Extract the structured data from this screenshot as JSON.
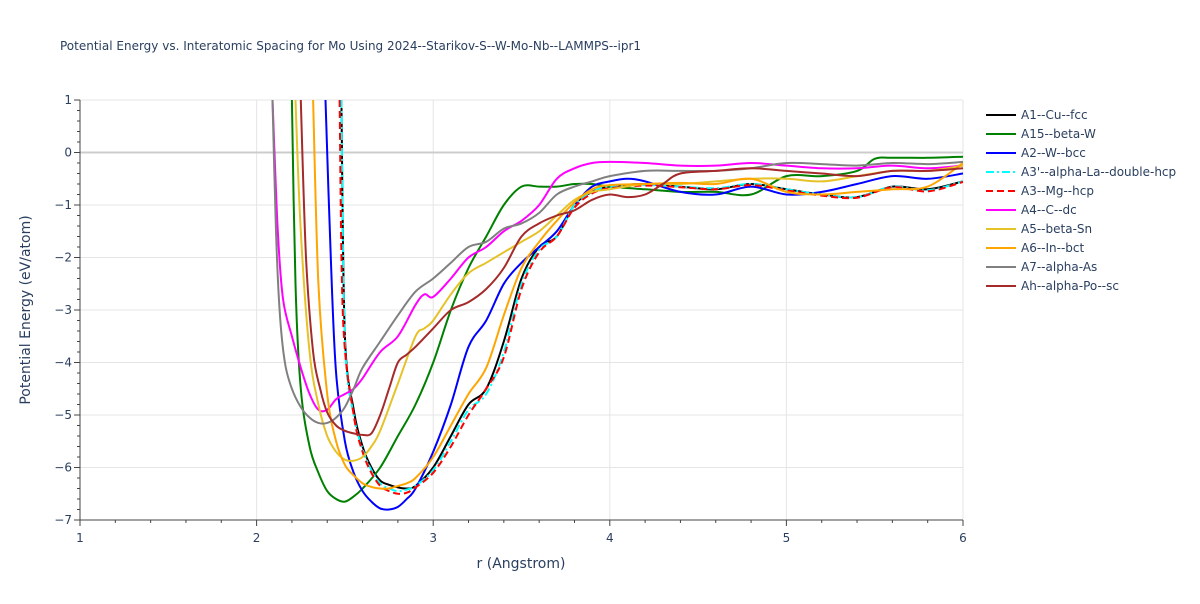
{
  "chart_data": {
    "type": "line",
    "title": "Potential Energy vs. Interatomic Spacing for Mo Using 2024--Starikov-S--W-Mo-Nb--LAMMPS--ipr1",
    "xlabel": "r (Angstrom)",
    "ylabel": "Potential Energy (eV/atom)",
    "xlim": [
      1,
      6
    ],
    "ylim": [
      -7,
      1
    ],
    "x_ticks": [
      "1",
      "2",
      "3",
      "4",
      "5",
      "6"
    ],
    "y_ticks": [
      "1",
      "0",
      "−1",
      "−2",
      "−3",
      "−4",
      "−5",
      "−6",
      "−7"
    ],
    "legend_position": "right",
    "series": [
      {
        "name": "A1--Cu--fcc",
        "color": "#000000",
        "dash": "solid",
        "x": [
          2.48,
          2.5,
          2.55,
          2.6,
          2.65,
          2.7,
          2.75,
          2.8,
          2.85,
          2.9,
          3.0,
          3.1,
          3.2,
          3.3,
          3.4,
          3.5,
          3.6,
          3.7,
          3.8,
          3.9,
          4.0,
          4.2,
          4.4,
          4.6,
          4.8,
          5.0,
          5.2,
          5.4,
          5.6,
          5.8,
          6.0
        ],
        "y": [
          1.0,
          -3.5,
          -4.9,
          -5.6,
          -6.0,
          -6.25,
          -6.33,
          -6.38,
          -6.4,
          -6.35,
          -6.0,
          -5.4,
          -4.8,
          -4.5,
          -3.6,
          -2.4,
          -1.8,
          -1.6,
          -1.0,
          -0.75,
          -0.65,
          -0.6,
          -0.65,
          -0.7,
          -0.6,
          -0.7,
          -0.8,
          -0.85,
          -0.65,
          -0.7,
          -0.55
        ]
      },
      {
        "name": "A15--beta-W",
        "color": "#008000",
        "dash": "solid",
        "x": [
          2.2,
          2.22,
          2.25,
          2.3,
          2.35,
          2.4,
          2.45,
          2.5,
          2.55,
          2.6,
          2.7,
          2.8,
          2.9,
          3.0,
          3.1,
          3.2,
          3.3,
          3.4,
          3.5,
          3.6,
          3.7,
          3.8,
          3.9,
          4.0,
          4.2,
          4.4,
          4.6,
          4.8,
          5.0,
          5.2,
          5.4,
          5.5,
          5.6,
          5.8,
          6.0
        ],
        "y": [
          1.0,
          -2.5,
          -4.5,
          -5.6,
          -6.1,
          -6.45,
          -6.6,
          -6.65,
          -6.55,
          -6.4,
          -6.0,
          -5.4,
          -4.8,
          -4.0,
          -3.0,
          -2.2,
          -1.6,
          -1.0,
          -0.65,
          -0.65,
          -0.65,
          -0.6,
          -0.6,
          -0.65,
          -0.7,
          -0.75,
          -0.75,
          -0.8,
          -0.45,
          -0.45,
          -0.35,
          -0.12,
          -0.1,
          -0.1,
          -0.08
        ]
      },
      {
        "name": "A2--W--bcc",
        "color": "#0000ff",
        "dash": "solid",
        "x": [
          2.39,
          2.42,
          2.45,
          2.5,
          2.55,
          2.6,
          2.65,
          2.7,
          2.75,
          2.8,
          2.85,
          2.9,
          3.0,
          3.1,
          3.2,
          3.3,
          3.4,
          3.5,
          3.6,
          3.7,
          3.8,
          3.9,
          4.0,
          4.1,
          4.2,
          4.4,
          4.6,
          4.8,
          5.0,
          5.2,
          5.4,
          5.6,
          5.8,
          6.0
        ],
        "y": [
          1.0,
          -2.0,
          -4.2,
          -5.5,
          -6.1,
          -6.45,
          -6.65,
          -6.78,
          -6.8,
          -6.75,
          -6.6,
          -6.4,
          -5.7,
          -4.8,
          -3.7,
          -3.2,
          -2.5,
          -2.1,
          -1.8,
          -1.5,
          -1.0,
          -0.65,
          -0.55,
          -0.5,
          -0.55,
          -0.75,
          -0.8,
          -0.65,
          -0.8,
          -0.75,
          -0.6,
          -0.45,
          -0.5,
          -0.4
        ]
      },
      {
        "name": "A3'--alpha-La--double-hcp",
        "color": "#00ffff",
        "dash": "dashdot",
        "x": [
          2.48,
          2.5,
          2.55,
          2.6,
          2.65,
          2.7,
          2.75,
          2.8,
          2.85,
          2.9,
          3.0,
          3.1,
          3.2,
          3.3,
          3.4,
          3.5,
          3.6,
          3.7,
          3.8,
          3.9,
          4.0,
          4.2,
          4.4,
          4.6,
          4.8,
          5.0,
          5.2,
          5.4,
          5.6,
          5.8,
          6.0
        ],
        "y": [
          1.0,
          -3.6,
          -5.0,
          -5.65,
          -6.05,
          -6.3,
          -6.4,
          -6.45,
          -6.42,
          -6.35,
          -6.05,
          -5.5,
          -4.9,
          -4.6,
          -3.8,
          -2.5,
          -1.85,
          -1.6,
          -1.0,
          -0.75,
          -0.65,
          -0.62,
          -0.65,
          -0.68,
          -0.6,
          -0.7,
          -0.8,
          -0.85,
          -0.65,
          -0.72,
          -0.55
        ]
      },
      {
        "name": "A3--Mg--hcp",
        "color": "#ff0000",
        "dash": "dash",
        "x": [
          2.47,
          2.49,
          2.55,
          2.6,
          2.65,
          2.7,
          2.75,
          2.8,
          2.85,
          2.9,
          3.0,
          3.1,
          3.2,
          3.3,
          3.4,
          3.5,
          3.6,
          3.7,
          3.8,
          3.9,
          4.0,
          4.2,
          4.4,
          4.6,
          4.8,
          5.0,
          5.2,
          5.4,
          5.6,
          5.8,
          6.0
        ],
        "y": [
          1.0,
          -3.2,
          -5.0,
          -5.7,
          -6.1,
          -6.35,
          -6.45,
          -6.5,
          -6.48,
          -6.38,
          -6.1,
          -5.6,
          -5.0,
          -4.5,
          -3.9,
          -2.6,
          -1.9,
          -1.6,
          -1.05,
          -0.78,
          -0.68,
          -0.63,
          -0.66,
          -0.7,
          -0.62,
          -0.72,
          -0.82,
          -0.86,
          -0.66,
          -0.74,
          -0.56
        ]
      },
      {
        "name": "A4--C--dc",
        "color": "#ff00ff",
        "dash": "solid",
        "x": [
          2.09,
          2.12,
          2.15,
          2.2,
          2.25,
          2.3,
          2.35,
          2.4,
          2.45,
          2.5,
          2.55,
          2.6,
          2.7,
          2.8,
          2.9,
          2.95,
          3.0,
          3.1,
          3.2,
          3.3,
          3.4,
          3.5,
          3.6,
          3.7,
          3.8,
          3.9,
          4.0,
          4.2,
          4.4,
          4.6,
          4.8,
          5.0,
          5.2,
          5.4,
          5.6,
          5.8,
          6.0
        ],
        "y": [
          1.0,
          -1.5,
          -2.8,
          -3.5,
          -4.1,
          -4.6,
          -4.9,
          -4.9,
          -4.7,
          -4.6,
          -4.5,
          -4.3,
          -3.8,
          -3.5,
          -2.9,
          -2.7,
          -2.75,
          -2.4,
          -2.0,
          -1.8,
          -1.5,
          -1.3,
          -1.0,
          -0.5,
          -0.3,
          -0.2,
          -0.18,
          -0.2,
          -0.25,
          -0.25,
          -0.2,
          -0.25,
          -0.3,
          -0.3,
          -0.25,
          -0.3,
          -0.25
        ]
      },
      {
        "name": "A5--beta-Sn",
        "color": "#e6c229",
        "dash": "solid",
        "x": [
          2.22,
          2.25,
          2.3,
          2.35,
          2.4,
          2.45,
          2.5,
          2.55,
          2.6,
          2.65,
          2.7,
          2.8,
          2.9,
          2.95,
          3.0,
          3.1,
          3.2,
          3.3,
          3.4,
          3.5,
          3.6,
          3.7,
          3.8,
          3.9,
          4.0,
          4.2,
          4.4,
          4.6,
          4.8,
          5.0,
          5.2,
          5.4,
          5.6,
          5.8,
          6.0
        ],
        "y": [
          1.0,
          -1.5,
          -3.8,
          -4.8,
          -5.4,
          -5.7,
          -5.85,
          -5.87,
          -5.8,
          -5.6,
          -5.3,
          -4.4,
          -3.5,
          -3.35,
          -3.2,
          -2.7,
          -2.3,
          -2.1,
          -1.9,
          -1.7,
          -1.5,
          -1.2,
          -0.9,
          -0.75,
          -0.7,
          -0.6,
          -0.6,
          -0.55,
          -0.5,
          -0.5,
          -0.55,
          -0.45,
          -0.35,
          -0.35,
          -0.25
        ]
      },
      {
        "name": "A6--In--bct",
        "color": "#ffa500",
        "dash": "solid",
        "x": [
          2.32,
          2.35,
          2.4,
          2.45,
          2.5,
          2.55,
          2.6,
          2.65,
          2.7,
          2.75,
          2.8,
          2.85,
          2.9,
          3.0,
          3.1,
          3.2,
          3.3,
          3.4,
          3.5,
          3.6,
          3.7,
          3.8,
          3.9,
          4.0,
          4.2,
          4.4,
          4.6,
          4.8,
          5.0,
          5.2,
          5.4,
          5.6,
          5.8,
          6.0
        ],
        "y": [
          1.0,
          -2.5,
          -4.6,
          -5.5,
          -5.95,
          -6.15,
          -6.3,
          -6.37,
          -6.4,
          -6.4,
          -6.35,
          -6.3,
          -6.2,
          -5.8,
          -5.2,
          -4.6,
          -4.1,
          -3.1,
          -2.2,
          -1.7,
          -1.3,
          -0.95,
          -0.7,
          -0.62,
          -0.6,
          -0.58,
          -0.6,
          -0.5,
          -0.75,
          -0.8,
          -0.75,
          -0.7,
          -0.65,
          -0.2
        ]
      },
      {
        "name": "A7--alpha-As",
        "color": "#808080",
        "dash": "solid",
        "x": [
          2.09,
          2.11,
          2.13,
          2.16,
          2.2,
          2.25,
          2.3,
          2.35,
          2.4,
          2.45,
          2.5,
          2.55,
          2.6,
          2.7,
          2.8,
          2.9,
          3.0,
          3.1,
          3.2,
          3.3,
          3.4,
          3.5,
          3.6,
          3.7,
          3.8,
          3.9,
          4.0,
          4.2,
          4.4,
          4.6,
          4.8,
          5.0,
          5.2,
          5.4,
          5.6,
          5.8,
          6.0
        ],
        "y": [
          1.0,
          -1.5,
          -3.0,
          -4.0,
          -4.5,
          -4.85,
          -5.05,
          -5.15,
          -5.15,
          -5.05,
          -4.85,
          -4.5,
          -4.1,
          -3.6,
          -3.1,
          -2.65,
          -2.4,
          -2.1,
          -1.8,
          -1.7,
          -1.45,
          -1.35,
          -1.15,
          -0.8,
          -0.65,
          -0.55,
          -0.45,
          -0.35,
          -0.35,
          -0.35,
          -0.3,
          -0.2,
          -0.22,
          -0.25,
          -0.2,
          -0.22,
          -0.18
        ]
      },
      {
        "name": "Ah--alpha-Po--sc",
        "color": "#a52a2a",
        "dash": "solid",
        "x": [
          2.25,
          2.28,
          2.32,
          2.36,
          2.4,
          2.45,
          2.5,
          2.55,
          2.6,
          2.65,
          2.7,
          2.75,
          2.8,
          2.85,
          2.9,
          3.0,
          3.1,
          3.2,
          3.3,
          3.4,
          3.5,
          3.6,
          3.7,
          3.8,
          3.9,
          4.0,
          4.1,
          4.2,
          4.3,
          4.4,
          4.6,
          4.8,
          5.0,
          5.2,
          5.4,
          5.6,
          5.8,
          6.0
        ],
        "y": [
          1.0,
          -2.0,
          -3.8,
          -4.5,
          -4.95,
          -5.2,
          -5.3,
          -5.35,
          -5.38,
          -5.35,
          -5.0,
          -4.5,
          -4.0,
          -3.85,
          -3.7,
          -3.35,
          -3.0,
          -2.85,
          -2.6,
          -2.2,
          -1.6,
          -1.35,
          -1.2,
          -1.1,
          -0.9,
          -0.8,
          -0.85,
          -0.8,
          -0.6,
          -0.4,
          -0.35,
          -0.3,
          -0.35,
          -0.4,
          -0.45,
          -0.35,
          -0.35,
          -0.3
        ]
      }
    ]
  }
}
